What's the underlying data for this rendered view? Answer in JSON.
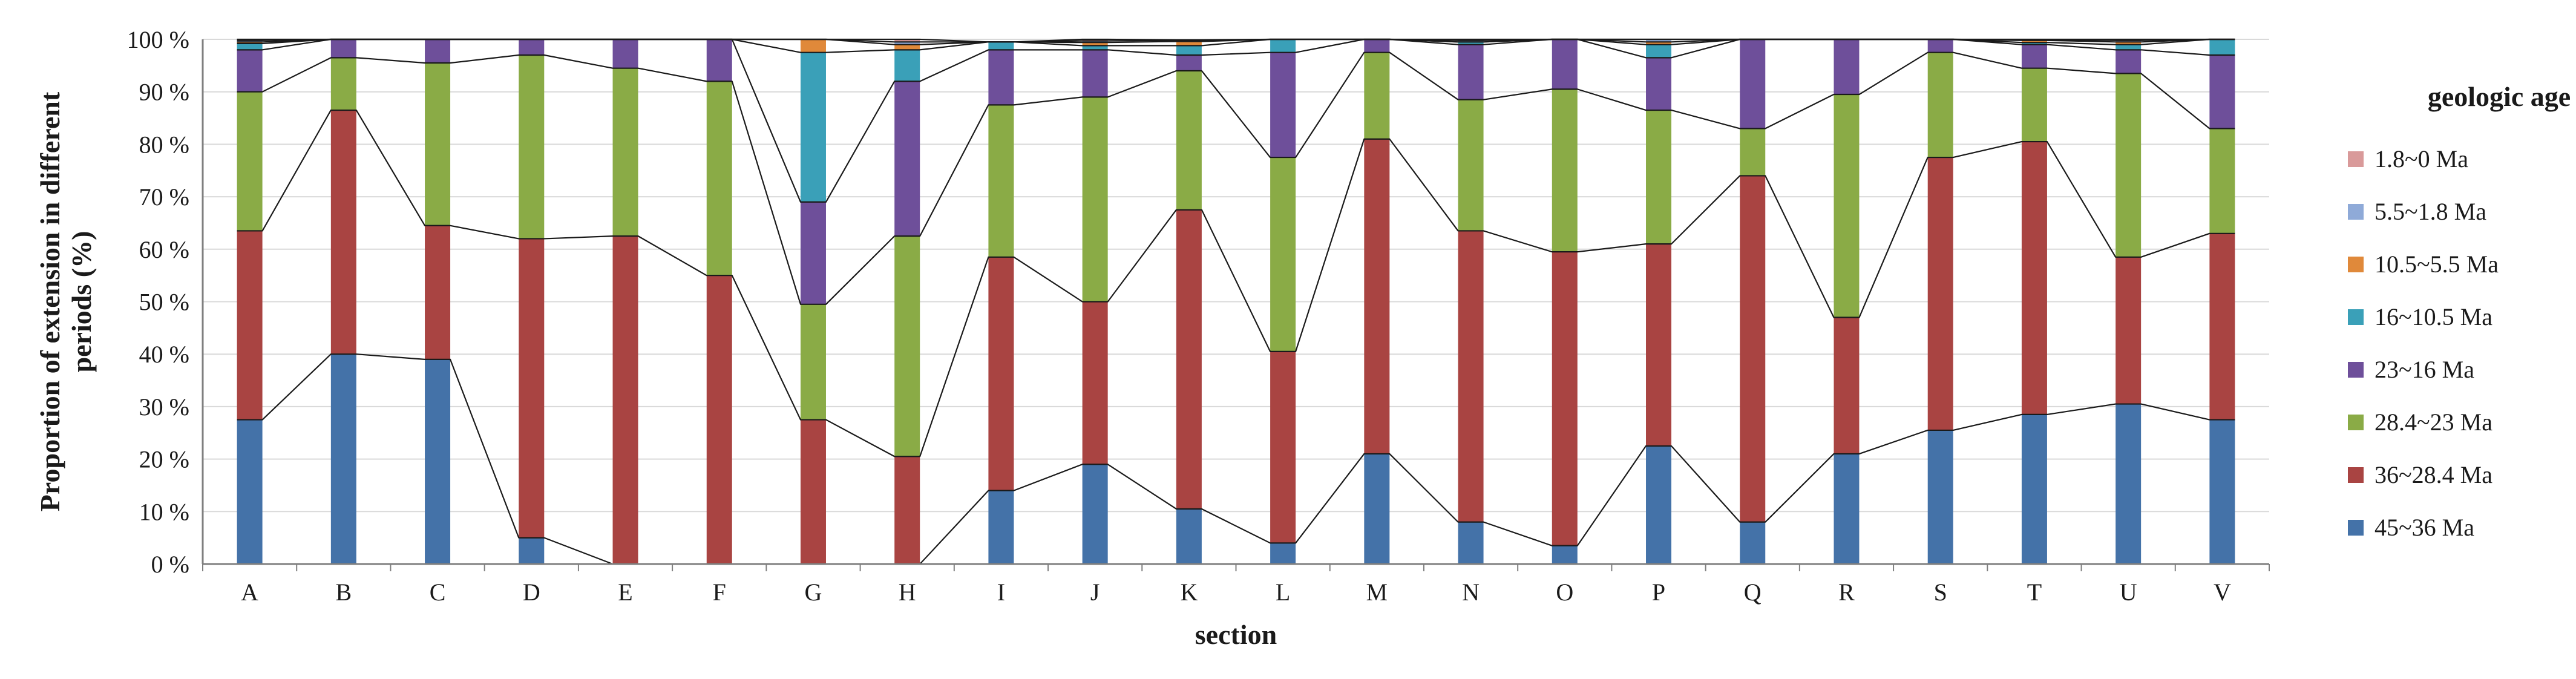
{
  "chart_data": {
    "type": "bar",
    "stacked": true,
    "percent_stacked": true,
    "connector_lines": true,
    "xlabel": "section",
    "ylabel": "Proportion of extension in different periods (%)",
    "ylim": [
      0,
      100
    ],
    "yticks": [
      0,
      10,
      20,
      30,
      40,
      50,
      60,
      70,
      80,
      90,
      100
    ],
    "ytick_suffix": " %",
    "grid": "horizontal",
    "legend_title": "geologic age",
    "legend_position": "right",
    "categories": [
      "A",
      "B",
      "C",
      "D",
      "E",
      "F",
      "G",
      "H",
      "I",
      "J",
      "K",
      "L",
      "M",
      "N",
      "O",
      "P",
      "Q",
      "R",
      "S",
      "T",
      "U",
      "V"
    ],
    "series": [
      {
        "name": "45~36 Ma",
        "color": "#4472a8",
        "values": [
          27.5,
          40,
          39,
          5,
          0,
          0,
          0,
          0,
          14,
          19,
          10.5,
          4,
          21,
          8,
          3.5,
          22.5,
          8,
          21,
          25.5,
          28.5,
          30.5,
          27.5
        ]
      },
      {
        "name": "36~28.4 Ma",
        "color": "#a94442",
        "values": [
          36,
          46.5,
          25.5,
          57,
          62.5,
          55,
          27.5,
          20.5,
          44.5,
          31,
          57,
          36.5,
          60,
          55.5,
          56,
          38.5,
          66,
          26,
          52,
          52,
          28,
          35.5
        ]
      },
      {
        "name": "28.4~23 Ma",
        "color": "#8aab46",
        "values": [
          26.5,
          10,
          31,
          35,
          32,
          37,
          22,
          42,
          29,
          39,
          26.5,
          37,
          16.5,
          25,
          31,
          25.5,
          9,
          42.5,
          20,
          14,
          35,
          20
        ]
      },
      {
        "name": "23~16 Ma",
        "color": "#6e4f9a",
        "values": [
          8,
          3.5,
          4.5,
          3,
          5.5,
          8,
          19.5,
          29.5,
          10.5,
          9,
          3,
          20,
          2.5,
          10.5,
          9.5,
          10,
          17,
          10.5,
          2.5,
          4.5,
          4.5,
          14
        ]
      },
      {
        "name": "16~10.5 Ma",
        "color": "#3aa0b8",
        "values": [
          1.2,
          0,
          0,
          0,
          0,
          0,
          28.5,
          6,
          1.5,
          0.8,
          1.8,
          2.5,
          0,
          0.5,
          0,
          2.5,
          0,
          0,
          0,
          0.4,
          1,
          3
        ]
      },
      {
        "name": "10.5~5.5 Ma",
        "color": "#e0893a",
        "values": [
          0.3,
          0,
          0,
          0,
          0,
          0,
          2.5,
          1,
          0,
          0.6,
          0.8,
          0,
          0,
          0,
          0,
          0.5,
          0,
          0,
          0,
          0.4,
          0.5,
          0
        ]
      },
      {
        "name": "5.5~1.8 Ma",
        "color": "#8faad8",
        "values": [
          0.3,
          0,
          0,
          0,
          0,
          0,
          0,
          0.5,
          0,
          0.3,
          0.2,
          0,
          0,
          0.3,
          0,
          0.5,
          0,
          0,
          0,
          0.1,
          0.3,
          0
        ]
      },
      {
        "name": "1.8~0 Ma",
        "color": "#d99a9a",
        "values": [
          0.2,
          0,
          0,
          0,
          0,
          0,
          0,
          0.5,
          0,
          0.3,
          0.1,
          0,
          0,
          0.2,
          0,
          0,
          0,
          0,
          0,
          0.1,
          0.2,
          0
        ]
      }
    ],
    "legend_order": [
      "1.8~0 Ma",
      "5.5~1.8 Ma",
      "10.5~5.5 Ma",
      "16~10.5 Ma",
      "23~16 Ma",
      "28.4~23 Ma",
      "36~28.4 Ma",
      "45~36 Ma"
    ],
    "axis_color": "#7f7f7f",
    "grid_color": "#d9d9d9",
    "line_color": "#1a1a1a"
  }
}
